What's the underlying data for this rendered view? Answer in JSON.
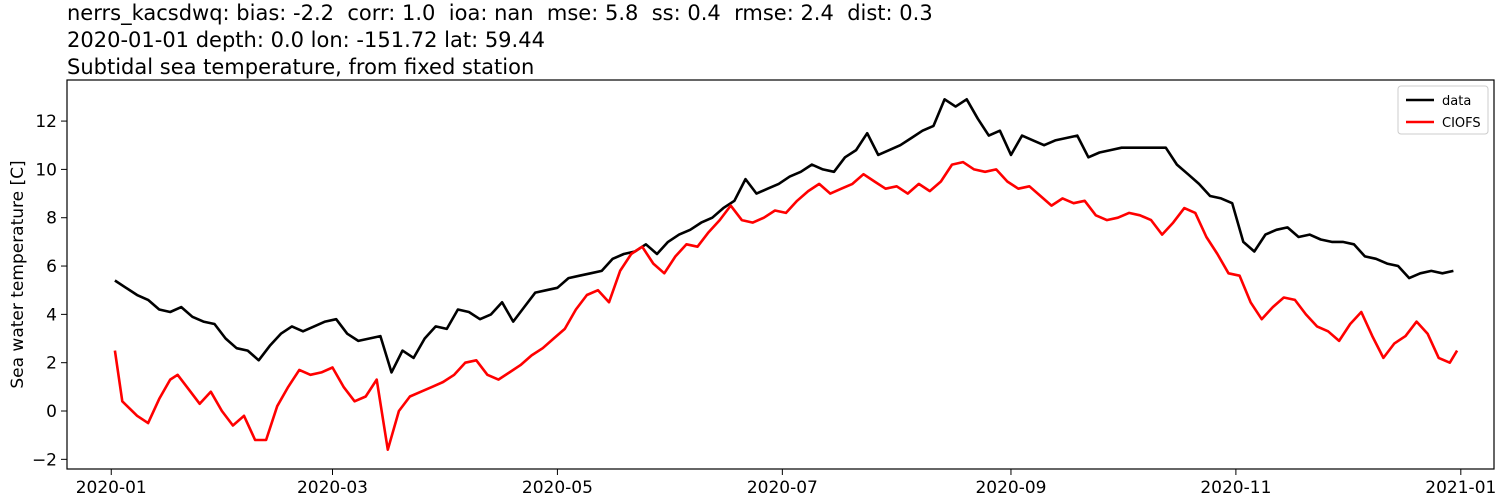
{
  "title": {
    "line1": "nerrs_kacsdwq: bias: -2.2  corr: 1.0  ioa: nan  mse: 5.8  ss: 0.4  rmse: 2.4  dist: 0.3",
    "line2": "2020-01-01 depth: 0.0 lon: -151.72 lat: 59.44",
    "line3": "Subtidal sea temperature, from fixed station"
  },
  "chart_data": {
    "type": "line",
    "title": "Subtidal sea temperature, from fixed station",
    "xlabel": "",
    "ylabel": "Sea water temperature [C]",
    "x_type": "date",
    "xlim": [
      "2019-12-20",
      "2021-01-10"
    ],
    "ylim": [
      -2.4,
      13.7
    ],
    "xticks": [
      "2020-01",
      "2020-03",
      "2020-05",
      "2020-07",
      "2020-09",
      "2020-11",
      "2021-01"
    ],
    "yticks": [
      -2,
      0,
      2,
      4,
      6,
      8,
      10,
      12
    ],
    "grid": false,
    "legend_position": "top-right",
    "series": [
      {
        "name": "data",
        "color": "#000000",
        "points": [
          [
            "2020-01-02",
            5.4
          ],
          [
            "2020-01-05",
            5.1
          ],
          [
            "2020-01-08",
            4.8
          ],
          [
            "2020-01-11",
            4.6
          ],
          [
            "2020-01-14",
            4.2
          ],
          [
            "2020-01-17",
            4.1
          ],
          [
            "2020-01-20",
            4.3
          ],
          [
            "2020-01-23",
            3.9
          ],
          [
            "2020-01-26",
            3.7
          ],
          [
            "2020-01-29",
            3.6
          ],
          [
            "2020-02-01",
            3.0
          ],
          [
            "2020-02-04",
            2.6
          ],
          [
            "2020-02-07",
            2.5
          ],
          [
            "2020-02-10",
            2.1
          ],
          [
            "2020-02-13",
            2.7
          ],
          [
            "2020-02-16",
            3.2
          ],
          [
            "2020-02-19",
            3.5
          ],
          [
            "2020-02-22",
            3.3
          ],
          [
            "2020-02-25",
            3.5
          ],
          [
            "2020-02-28",
            3.7
          ],
          [
            "2020-03-02",
            3.8
          ],
          [
            "2020-03-05",
            3.2
          ],
          [
            "2020-03-08",
            2.9
          ],
          [
            "2020-03-11",
            3.0
          ],
          [
            "2020-03-14",
            3.1
          ],
          [
            "2020-03-17",
            1.6
          ],
          [
            "2020-03-20",
            2.5
          ],
          [
            "2020-03-23",
            2.2
          ],
          [
            "2020-03-26",
            3.0
          ],
          [
            "2020-03-29",
            3.5
          ],
          [
            "2020-04-01",
            3.4
          ],
          [
            "2020-04-04",
            4.2
          ],
          [
            "2020-04-07",
            4.1
          ],
          [
            "2020-04-10",
            3.8
          ],
          [
            "2020-04-13",
            4.0
          ],
          [
            "2020-04-16",
            4.5
          ],
          [
            "2020-04-19",
            3.7
          ],
          [
            "2020-04-22",
            4.3
          ],
          [
            "2020-04-25",
            4.9
          ],
          [
            "2020-04-28",
            5.0
          ],
          [
            "2020-05-01",
            5.1
          ],
          [
            "2020-05-04",
            5.5
          ],
          [
            "2020-05-07",
            5.6
          ],
          [
            "2020-05-10",
            5.7
          ],
          [
            "2020-05-13",
            5.8
          ],
          [
            "2020-05-16",
            6.3
          ],
          [
            "2020-05-19",
            6.5
          ],
          [
            "2020-05-22",
            6.6
          ],
          [
            "2020-05-25",
            6.9
          ],
          [
            "2020-05-28",
            6.5
          ],
          [
            "2020-05-31",
            7.0
          ],
          [
            "2020-06-03",
            7.3
          ],
          [
            "2020-06-06",
            7.5
          ],
          [
            "2020-06-09",
            7.8
          ],
          [
            "2020-06-12",
            8.0
          ],
          [
            "2020-06-15",
            8.4
          ],
          [
            "2020-06-18",
            8.7
          ],
          [
            "2020-06-21",
            9.6
          ],
          [
            "2020-06-24",
            9.0
          ],
          [
            "2020-06-27",
            9.2
          ],
          [
            "2020-06-30",
            9.4
          ],
          [
            "2020-07-03",
            9.7
          ],
          [
            "2020-07-06",
            9.9
          ],
          [
            "2020-07-09",
            10.2
          ],
          [
            "2020-07-12",
            10.0
          ],
          [
            "2020-07-15",
            9.9
          ],
          [
            "2020-07-18",
            10.5
          ],
          [
            "2020-07-21",
            10.8
          ],
          [
            "2020-07-24",
            11.5
          ],
          [
            "2020-07-27",
            10.6
          ],
          [
            "2020-07-30",
            10.8
          ],
          [
            "2020-08-02",
            11.0
          ],
          [
            "2020-08-05",
            11.3
          ],
          [
            "2020-08-08",
            11.6
          ],
          [
            "2020-08-11",
            11.8
          ],
          [
            "2020-08-14",
            12.9
          ],
          [
            "2020-08-17",
            12.6
          ],
          [
            "2020-08-20",
            12.9
          ],
          [
            "2020-08-23",
            12.1
          ],
          [
            "2020-08-26",
            11.4
          ],
          [
            "2020-08-29",
            11.6
          ],
          [
            "2020-09-01",
            10.6
          ],
          [
            "2020-09-04",
            11.4
          ],
          [
            "2020-09-07",
            11.2
          ],
          [
            "2020-09-10",
            11.0
          ],
          [
            "2020-09-13",
            11.2
          ],
          [
            "2020-09-16",
            11.3
          ],
          [
            "2020-09-19",
            11.4
          ],
          [
            "2020-09-22",
            10.5
          ],
          [
            "2020-09-25",
            10.7
          ],
          [
            "2020-09-28",
            10.8
          ],
          [
            "2020-10-01",
            10.9
          ],
          [
            "2020-10-04",
            10.9
          ],
          [
            "2020-10-07",
            10.9
          ],
          [
            "2020-10-10",
            10.9
          ],
          [
            "2020-10-13",
            10.9
          ],
          [
            "2020-10-16",
            10.2
          ],
          [
            "2020-10-19",
            9.8
          ],
          [
            "2020-10-22",
            9.4
          ],
          [
            "2020-10-25",
            8.9
          ],
          [
            "2020-10-28",
            8.8
          ],
          [
            "2020-10-31",
            8.6
          ],
          [
            "2020-11-03",
            7.0
          ],
          [
            "2020-11-06",
            6.6
          ],
          [
            "2020-11-09",
            7.3
          ],
          [
            "2020-11-12",
            7.5
          ],
          [
            "2020-11-15",
            7.6
          ],
          [
            "2020-11-18",
            7.2
          ],
          [
            "2020-11-21",
            7.3
          ],
          [
            "2020-11-24",
            7.1
          ],
          [
            "2020-11-27",
            7.0
          ],
          [
            "2020-11-30",
            7.0
          ],
          [
            "2020-12-03",
            6.9
          ],
          [
            "2020-12-06",
            6.4
          ],
          [
            "2020-12-09",
            6.3
          ],
          [
            "2020-12-12",
            6.1
          ],
          [
            "2020-12-15",
            6.0
          ],
          [
            "2020-12-18",
            5.5
          ],
          [
            "2020-12-21",
            5.7
          ],
          [
            "2020-12-24",
            5.8
          ],
          [
            "2020-12-27",
            5.7
          ],
          [
            "2020-12-30",
            5.8
          ]
        ]
      },
      {
        "name": "CIOFS",
        "color": "#ff0000",
        "points": [
          [
            "2020-01-02",
            2.5
          ],
          [
            "2020-01-04",
            0.4
          ],
          [
            "2020-01-06",
            0.1
          ],
          [
            "2020-01-08",
            -0.2
          ],
          [
            "2020-01-11",
            -0.5
          ],
          [
            "2020-01-14",
            0.5
          ],
          [
            "2020-01-17",
            1.3
          ],
          [
            "2020-01-19",
            1.5
          ],
          [
            "2020-01-22",
            0.9
          ],
          [
            "2020-01-25",
            0.3
          ],
          [
            "2020-01-28",
            0.8
          ],
          [
            "2020-01-31",
            0.0
          ],
          [
            "2020-02-03",
            -0.6
          ],
          [
            "2020-02-06",
            -0.2
          ],
          [
            "2020-02-09",
            -1.2
          ],
          [
            "2020-02-12",
            -1.2
          ],
          [
            "2020-02-15",
            0.2
          ],
          [
            "2020-02-18",
            1.0
          ],
          [
            "2020-02-21",
            1.7
          ],
          [
            "2020-02-24",
            1.5
          ],
          [
            "2020-02-27",
            1.6
          ],
          [
            "2020-03-01",
            1.8
          ],
          [
            "2020-03-04",
            1.0
          ],
          [
            "2020-03-07",
            0.4
          ],
          [
            "2020-03-10",
            0.6
          ],
          [
            "2020-03-13",
            1.3
          ],
          [
            "2020-03-16",
            -1.6
          ],
          [
            "2020-03-19",
            0.0
          ],
          [
            "2020-03-22",
            0.6
          ],
          [
            "2020-03-25",
            0.8
          ],
          [
            "2020-03-28",
            1.0
          ],
          [
            "2020-03-31",
            1.2
          ],
          [
            "2020-04-03",
            1.5
          ],
          [
            "2020-04-06",
            2.0
          ],
          [
            "2020-04-09",
            2.1
          ],
          [
            "2020-04-12",
            1.5
          ],
          [
            "2020-04-15",
            1.3
          ],
          [
            "2020-04-18",
            1.6
          ],
          [
            "2020-04-21",
            1.9
          ],
          [
            "2020-04-24",
            2.3
          ],
          [
            "2020-04-27",
            2.6
          ],
          [
            "2020-04-30",
            3.0
          ],
          [
            "2020-05-03",
            3.4
          ],
          [
            "2020-05-06",
            4.2
          ],
          [
            "2020-05-09",
            4.8
          ],
          [
            "2020-05-12",
            5.0
          ],
          [
            "2020-05-15",
            4.5
          ],
          [
            "2020-05-18",
            5.8
          ],
          [
            "2020-05-21",
            6.5
          ],
          [
            "2020-05-24",
            6.8
          ],
          [
            "2020-05-27",
            6.1
          ],
          [
            "2020-05-30",
            5.7
          ],
          [
            "2020-06-02",
            6.4
          ],
          [
            "2020-06-05",
            6.9
          ],
          [
            "2020-06-08",
            6.8
          ],
          [
            "2020-06-11",
            7.4
          ],
          [
            "2020-06-14",
            7.9
          ],
          [
            "2020-06-17",
            8.5
          ],
          [
            "2020-06-20",
            7.9
          ],
          [
            "2020-06-23",
            7.8
          ],
          [
            "2020-06-26",
            8.0
          ],
          [
            "2020-06-29",
            8.3
          ],
          [
            "2020-07-02",
            8.2
          ],
          [
            "2020-07-05",
            8.7
          ],
          [
            "2020-07-08",
            9.1
          ],
          [
            "2020-07-11",
            9.4
          ],
          [
            "2020-07-14",
            9.0
          ],
          [
            "2020-07-17",
            9.2
          ],
          [
            "2020-07-20",
            9.4
          ],
          [
            "2020-07-23",
            9.8
          ],
          [
            "2020-07-26",
            9.5
          ],
          [
            "2020-07-29",
            9.2
          ],
          [
            "2020-08-01",
            9.3
          ],
          [
            "2020-08-04",
            9.0
          ],
          [
            "2020-08-07",
            9.4
          ],
          [
            "2020-08-10",
            9.1
          ],
          [
            "2020-08-13",
            9.5
          ],
          [
            "2020-08-16",
            10.2
          ],
          [
            "2020-08-19",
            10.3
          ],
          [
            "2020-08-22",
            10.0
          ],
          [
            "2020-08-25",
            9.9
          ],
          [
            "2020-08-28",
            10.0
          ],
          [
            "2020-08-31",
            9.5
          ],
          [
            "2020-09-03",
            9.2
          ],
          [
            "2020-09-06",
            9.3
          ],
          [
            "2020-09-09",
            8.9
          ],
          [
            "2020-09-12",
            8.5
          ],
          [
            "2020-09-15",
            8.8
          ],
          [
            "2020-09-18",
            8.6
          ],
          [
            "2020-09-21",
            8.7
          ],
          [
            "2020-09-24",
            8.1
          ],
          [
            "2020-09-27",
            7.9
          ],
          [
            "2020-09-30",
            8.0
          ],
          [
            "2020-10-03",
            8.2
          ],
          [
            "2020-10-06",
            8.1
          ],
          [
            "2020-10-09",
            7.9
          ],
          [
            "2020-10-12",
            7.3
          ],
          [
            "2020-10-15",
            7.8
          ],
          [
            "2020-10-18",
            8.4
          ],
          [
            "2020-10-21",
            8.2
          ],
          [
            "2020-10-24",
            7.2
          ],
          [
            "2020-10-27",
            6.5
          ],
          [
            "2020-10-30",
            5.7
          ],
          [
            "2020-11-02",
            5.6
          ],
          [
            "2020-11-05",
            4.5
          ],
          [
            "2020-11-08",
            3.8
          ],
          [
            "2020-11-11",
            4.3
          ],
          [
            "2020-11-14",
            4.7
          ],
          [
            "2020-11-17",
            4.6
          ],
          [
            "2020-11-20",
            4.0
          ],
          [
            "2020-11-23",
            3.5
          ],
          [
            "2020-11-26",
            3.3
          ],
          [
            "2020-11-29",
            2.9
          ],
          [
            "2020-12-02",
            3.6
          ],
          [
            "2020-12-05",
            4.1
          ],
          [
            "2020-12-08",
            3.1
          ],
          [
            "2020-12-11",
            2.2
          ],
          [
            "2020-12-14",
            2.8
          ],
          [
            "2020-12-17",
            3.1
          ],
          [
            "2020-12-20",
            3.7
          ],
          [
            "2020-12-23",
            3.2
          ],
          [
            "2020-12-26",
            2.2
          ],
          [
            "2020-12-29",
            2.0
          ],
          [
            "2020-12-31",
            2.5
          ]
        ]
      }
    ]
  }
}
